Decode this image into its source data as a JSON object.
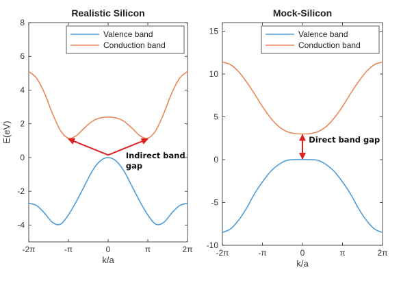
{
  "chart_data": [
    {
      "type": "line",
      "title": "Realistic Silicon",
      "xlabel": "k/a",
      "ylabel": "E(eV)",
      "xlim": [
        -6.2832,
        6.2832
      ],
      "ylim": [
        -5,
        8
      ],
      "xticks": [
        -6.2832,
        -3.1416,
        0,
        3.1416,
        6.2832
      ],
      "xtick_labels": [
        "-2π",
        "-π",
        "0",
        "π",
        "2π"
      ],
      "yticks": [
        -4,
        -2,
        0,
        2,
        4,
        6,
        8
      ],
      "ytick_labels": [
        "-4",
        "-2",
        "0",
        "2",
        "4",
        "6",
        "8"
      ],
      "grid": false,
      "legend_position": "top-right",
      "series": [
        {
          "name": "Valence band",
          "color": "#4f9bd6",
          "x": [
            -6.2832,
            -5.6549,
            -5.0265,
            -4.3982,
            -3.7699,
            -3.1416,
            -2.5133,
            -1.885,
            -1.2566,
            -0.6283,
            0,
            0.6283,
            1.2566,
            1.885,
            2.5133,
            3.1416,
            3.7699,
            4.3982,
            5.0265,
            5.6549,
            6.2832
          ],
          "y": [
            -2.7,
            -2.85,
            -3.3,
            -3.85,
            -3.95,
            -3.4,
            -2.6,
            -1.7,
            -0.8,
            -0.2,
            0,
            -0.2,
            -0.8,
            -1.7,
            -2.6,
            -3.4,
            -3.95,
            -3.85,
            -3.3,
            -2.85,
            -2.7
          ]
        },
        {
          "name": "Conduction band",
          "color": "#e8875a",
          "x": [
            -6.2832,
            -5.6549,
            -5.0265,
            -4.3982,
            -3.7699,
            -3.1416,
            -2.5133,
            -1.885,
            -1.2566,
            -0.6283,
            0,
            0.6283,
            1.2566,
            1.885,
            2.5133,
            3.1416,
            3.7699,
            4.3982,
            5.0265,
            5.6549,
            6.2832
          ],
          "y": [
            5.1,
            4.7,
            3.8,
            2.6,
            1.6,
            1.15,
            1.3,
            1.75,
            2.15,
            2.35,
            2.4,
            2.35,
            2.15,
            1.75,
            1.3,
            1.15,
            1.6,
            2.6,
            3.8,
            4.7,
            5.1
          ]
        }
      ],
      "annotation": {
        "text_line1": "Indirect band",
        "text_line2": "gap",
        "arrow_color": "#e02020",
        "arrow_tail": [
          0,
          0.15
        ],
        "arrow_heads": [
          [
            -3.1416,
            1.1
          ],
          [
            3.1416,
            1.1
          ]
        ],
        "text_anchor": [
          1.4,
          -0.05
        ]
      }
    },
    {
      "type": "line",
      "title": "Mock-Silicon",
      "xlabel": "k/a",
      "ylabel": "",
      "xlim": [
        -6.2832,
        6.2832
      ],
      "ylim": [
        -10,
        16
      ],
      "xticks": [
        -6.2832,
        -3.1416,
        0,
        3.1416,
        6.2832
      ],
      "xtick_labels": [
        "-2π",
        "-π",
        "0",
        "π",
        "2π"
      ],
      "yticks": [
        -10,
        -5,
        0,
        5,
        10,
        15
      ],
      "ytick_labels": [
        "-10",
        "-5",
        "0",
        "5",
        "10",
        "15"
      ],
      "grid": false,
      "legend_position": "top-right",
      "series": [
        {
          "name": "Valence band",
          "color": "#4f9bd6",
          "x": [
            -6.2832,
            -5.6549,
            -5.0265,
            -4.3982,
            -3.7699,
            -3.1416,
            -2.5133,
            -1.885,
            -1.2566,
            -0.6283,
            0,
            0.6283,
            1.2566,
            1.885,
            2.5133,
            3.1416,
            3.7699,
            4.3982,
            5.0265,
            5.6549,
            6.2832
          ],
          "y": [
            -8.5,
            -8.1,
            -7.1,
            -5.7,
            -4.0,
            -2.6,
            -1.4,
            -0.6,
            -0.1,
            0,
            0,
            0,
            -0.1,
            -0.6,
            -1.4,
            -2.6,
            -4.0,
            -5.7,
            -7.1,
            -8.1,
            -8.5
          ]
        },
        {
          "name": "Conduction band",
          "color": "#e8875a",
          "x": [
            -6.2832,
            -5.6549,
            -5.0265,
            -4.3982,
            -3.7699,
            -3.1416,
            -2.5133,
            -1.885,
            -1.2566,
            -0.6283,
            0,
            0.6283,
            1.2566,
            1.885,
            2.5133,
            3.1416,
            3.7699,
            4.3982,
            5.0265,
            5.6549,
            6.2832
          ],
          "y": [
            11.4,
            11.1,
            10.3,
            9.1,
            7.7,
            6.2,
            4.9,
            3.9,
            3.3,
            3.05,
            3.0,
            3.05,
            3.3,
            3.9,
            4.9,
            6.2,
            7.7,
            9.1,
            10.3,
            11.1,
            11.4
          ]
        }
      ],
      "annotation": {
        "text_line1": "Direct band gap",
        "text_line2": "",
        "arrow_color": "#e02020",
        "arrow_tail": [
          0,
          3.0
        ],
        "arrow_heads": [
          [
            0,
            3.0
          ],
          [
            0,
            0
          ]
        ],
        "double_headed": true,
        "text_anchor": [
          0.5,
          2.0
        ]
      }
    }
  ]
}
